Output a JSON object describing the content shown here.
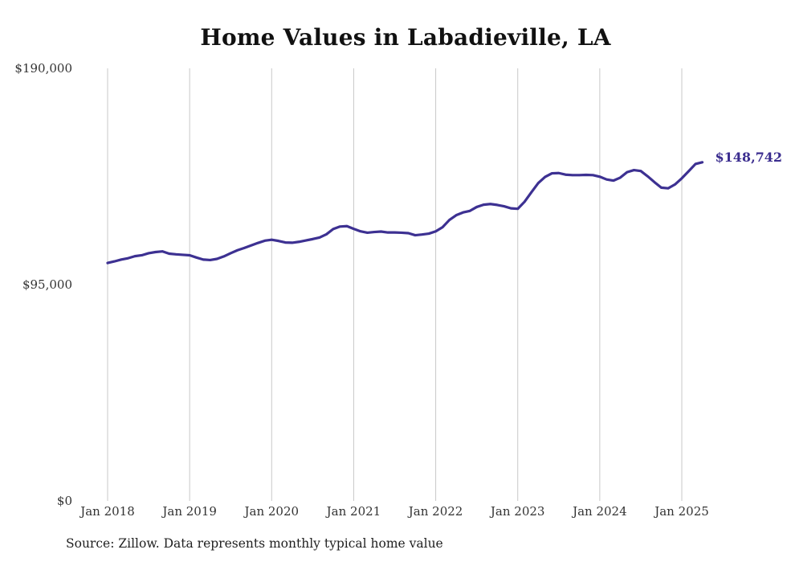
{
  "page": {
    "title": "Home Values in Labadieville, LA",
    "source": "Source: Zillow. Data represents monthly typical home value"
  },
  "colors": {
    "line": "#3d3192",
    "grid": "#c8c8c8",
    "tick_text": "#333333",
    "title_text": "#111111"
  },
  "chart_data": {
    "type": "line",
    "title": "Home Values in Labadieville, LA",
    "xlabel": "",
    "ylabel": "",
    "ylim": [
      0,
      190000
    ],
    "grid": "vertical",
    "y_ticks": [
      {
        "value": 0,
        "label": "$0"
      },
      {
        "value": 95000,
        "label": "$95,000"
      },
      {
        "value": 190000,
        "label": "$190,000"
      }
    ],
    "x_ticks": [
      {
        "value": 2018.0,
        "label": "Jan 2018"
      },
      {
        "value": 2019.0,
        "label": "Jan 2019"
      },
      {
        "value": 2020.0,
        "label": "Jan 2020"
      },
      {
        "value": 2021.0,
        "label": "Jan 2021"
      },
      {
        "value": 2022.0,
        "label": "Jan 2022"
      },
      {
        "value": 2023.0,
        "label": "Jan 2023"
      },
      {
        "value": 2024.0,
        "label": "Jan 2024"
      },
      {
        "value": 2025.0,
        "label": "Jan 2025"
      }
    ],
    "end_label": "$148,742",
    "series": [
      {
        "x": [
          2018.0,
          2018.083,
          2018.167,
          2018.25,
          2018.333,
          2018.417,
          2018.5,
          2018.583,
          2018.667,
          2018.75,
          2018.833,
          2018.917,
          2019.0,
          2019.083,
          2019.167,
          2019.25,
          2019.333,
          2019.417,
          2019.5,
          2019.583,
          2019.667,
          2019.75,
          2019.833,
          2019.917,
          2020.0,
          2020.083,
          2020.167,
          2020.25,
          2020.333,
          2020.417,
          2020.5,
          2020.583,
          2020.667,
          2020.75,
          2020.833,
          2020.917,
          2021.0,
          2021.083,
          2021.167,
          2021.25,
          2021.333,
          2021.417,
          2021.5,
          2021.583,
          2021.667,
          2021.75,
          2021.833,
          2021.917,
          2022.0,
          2022.083,
          2022.167,
          2022.25,
          2022.333,
          2022.417,
          2022.5,
          2022.583,
          2022.667,
          2022.75,
          2022.833,
          2022.917,
          2023.0,
          2023.083,
          2023.167,
          2023.25,
          2023.333,
          2023.417,
          2023.5,
          2023.583,
          2023.667,
          2023.75,
          2023.833,
          2023.917,
          2024.0,
          2024.083,
          2024.167,
          2024.25,
          2024.333,
          2024.417,
          2024.5,
          2024.583,
          2024.667,
          2024.75,
          2024.833,
          2024.917,
          2025.0,
          2025.083,
          2025.167,
          2025.25
        ],
        "values": [
          104500,
          105200,
          106000,
          106600,
          107500,
          107900,
          108800,
          109300,
          109600,
          108600,
          108300,
          108100,
          107900,
          106900,
          106000,
          105800,
          106300,
          107400,
          108800,
          110100,
          111100,
          112200,
          113300,
          114300,
          114700,
          114200,
          113500,
          113400,
          113800,
          114400,
          115000,
          115700,
          117100,
          119400,
          120500,
          120700,
          119500,
          118400,
          117800,
          118100,
          118300,
          117900,
          117900,
          117800,
          117600,
          116700,
          117000,
          117400,
          118400,
          120200,
          123400,
          125500,
          126700,
          127400,
          129100,
          130100,
          130400,
          130000,
          129400,
          128500,
          128300,
          131400,
          135600,
          139600,
          142300,
          143900,
          144000,
          143300,
          143100,
          143100,
          143200,
          143100,
          142400,
          141200,
          140700,
          142000,
          144400,
          145300,
          144900,
          142600,
          140000,
          137600,
          137300,
          139000,
          141700,
          144800,
          148000,
          148742
        ]
      }
    ]
  }
}
